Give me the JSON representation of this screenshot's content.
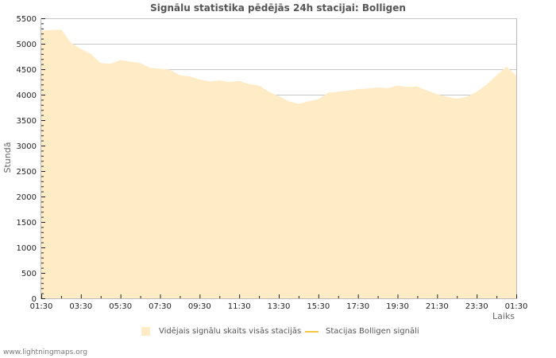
{
  "title": "Signālu statistika pēdējās 24h stacijai: Bolligen",
  "footer": "www.lightningmaps.org",
  "legend": {
    "area_label": "Vidējais signālu skaits visās stacijās",
    "line_label": "Stacijas Bolligen signāli"
  },
  "colors": {
    "area_fill": "#ffecc6",
    "line": "#f5c842",
    "grid": "#c8c8c8",
    "axis": "#bbbbbb"
  },
  "chart_data": {
    "type": "area",
    "title": "Signālu statistika pēdējās 24h stacijai: Bolligen",
    "xlabel": "Laiks",
    "ylabel": "Stundā",
    "ylim": [
      0,
      5500
    ],
    "yticks": [
      0,
      500,
      1000,
      1500,
      2000,
      2500,
      3000,
      3500,
      4000,
      4500,
      5000,
      5500
    ],
    "xticks": [
      "01:30",
      "03:30",
      "05:30",
      "07:30",
      "09:30",
      "11:30",
      "13:30",
      "15:30",
      "17:30",
      "19:30",
      "21:30",
      "23:30",
      "01:30"
    ],
    "grid": true,
    "legend_position": "bottom",
    "x": [
      "01:30",
      "02:00",
      "02:30",
      "03:00",
      "03:30",
      "04:00",
      "04:30",
      "05:00",
      "05:30",
      "06:00",
      "06:30",
      "07:00",
      "07:30",
      "08:00",
      "08:30",
      "09:00",
      "09:30",
      "10:00",
      "10:30",
      "11:00",
      "11:30",
      "12:00",
      "12:30",
      "13:00",
      "13:30",
      "14:00",
      "14:30",
      "15:00",
      "15:30",
      "16:00",
      "16:30",
      "17:00",
      "17:30",
      "18:00",
      "18:30",
      "19:00",
      "19:30",
      "20:00",
      "20:30",
      "21:00",
      "21:30",
      "22:00",
      "22:30",
      "23:00",
      "23:30",
      "00:00",
      "00:30",
      "01:00",
      "01:30"
    ],
    "series": [
      {
        "name": "Vidējais signālu skaits visās stacijās",
        "values": [
          5260,
          5270,
          5280,
          5020,
          4900,
          4800,
          4620,
          4610,
          4680,
          4650,
          4620,
          4530,
          4510,
          4490,
          4380,
          4360,
          4300,
          4260,
          4280,
          4250,
          4270,
          4210,
          4180,
          4060,
          3970,
          3870,
          3820,
          3870,
          3910,
          4040,
          4060,
          4080,
          4110,
          4120,
          4140,
          4130,
          4180,
          4150,
          4160,
          4080,
          4010,
          3960,
          3920,
          3960,
          4060,
          4200,
          4380,
          4550,
          4380
        ]
      },
      {
        "name": "Stacijas Bolligen signāli",
        "values": []
      }
    ]
  }
}
